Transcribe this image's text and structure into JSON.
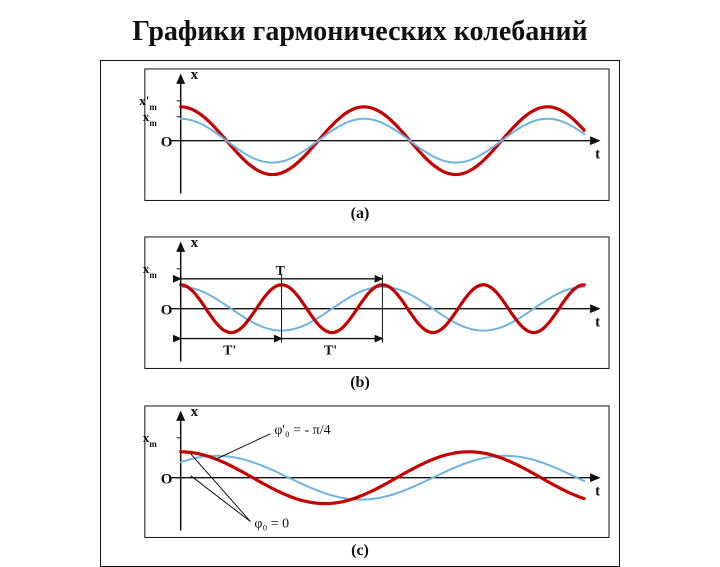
{
  "title": "Графики гармонических колебаний",
  "figure": {
    "background": "#ffffff",
    "border_color": "#111111",
    "panels": [
      {
        "label": "(a)",
        "axis": {
          "color": "#111111",
          "x_label": "t",
          "y_label": "x",
          "y0_label": "O",
          "y_ticks": [
            "x'",
            "x"
          ],
          "y_tick_sub": "m"
        },
        "curves": [
          {
            "color": "#c40000",
            "width": 3.2,
            "amplitude": 34,
            "periods": 2.2,
            "phase_deg": 90
          },
          {
            "color": "#6fb3e0",
            "width": 2.0,
            "amplitude": 22,
            "periods": 2.2,
            "phase_deg": 90
          }
        ]
      },
      {
        "label": "(b)",
        "axis": {
          "color": "#111111",
          "x_label": "t",
          "y_label": "x",
          "y0_label": "O",
          "y_ticks": [
            "x"
          ],
          "y_tick_sub": "m",
          "top_span_label": "T",
          "bottom_spans": [
            "T'",
            "T'"
          ]
        },
        "curves": [
          {
            "color": "#6fb3e0",
            "width": 2.0,
            "amplitude": 22,
            "periods": 2.0,
            "phase_deg": 90
          },
          {
            "color": "#c40000",
            "width": 3.2,
            "amplitude": 24,
            "periods": 4.0,
            "phase_deg": 90
          }
        ]
      },
      {
        "label": "(c)",
        "axis": {
          "color": "#111111",
          "x_label": "t",
          "y_label": "x",
          "y0_label": "O",
          "y_ticks": [
            "x"
          ],
          "y_tick_sub": "m",
          "annot_top": "φ'₀ = - π/4",
          "annot_bottom": "φ₀ = 0"
        },
        "curves": [
          {
            "color": "#6fb3e0",
            "width": 2.0,
            "amplitude": 22,
            "periods": 1.4,
            "phase_deg": 45
          },
          {
            "color": "#c40000",
            "width": 3.2,
            "amplitude": 26,
            "periods": 1.4,
            "phase_deg": 90
          }
        ]
      }
    ]
  }
}
